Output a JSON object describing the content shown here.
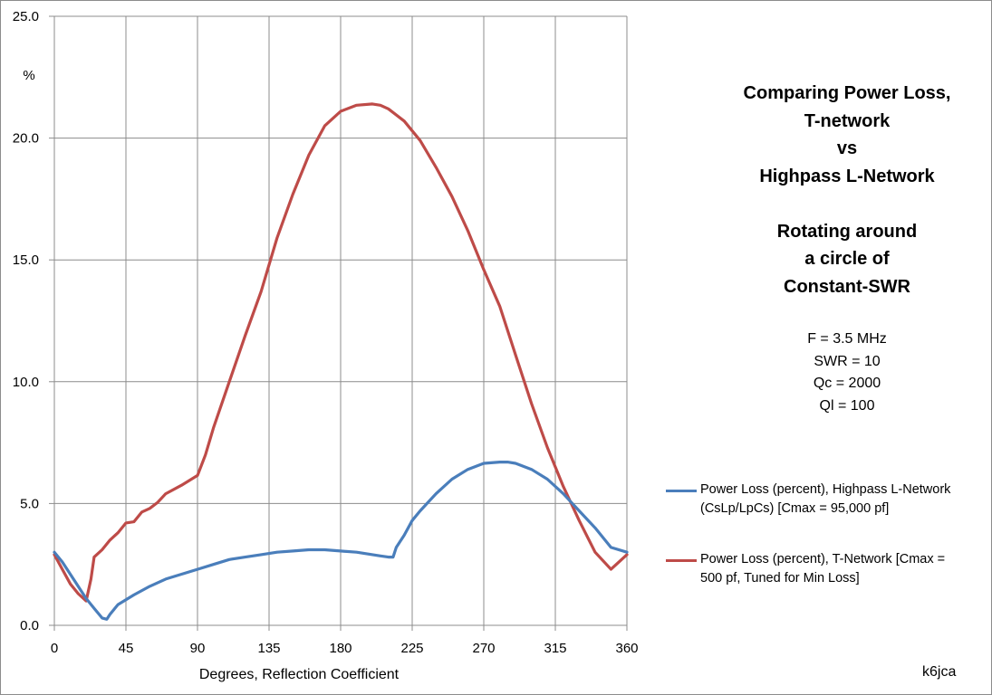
{
  "chart_data": {
    "type": "line",
    "title": [
      "Comparing Power Loss,",
      "T-network",
      "vs",
      "Highpass L-Network",
      "",
      "Rotating around",
      "a circle of",
      "Constant-SWR"
    ],
    "parameters": [
      "F = 3.5 MHz",
      "SWR = 10",
      "Qc = 2000",
      "Ql = 100"
    ],
    "xlabel": "Degrees, Reflection Coefficient",
    "ylabel": "%",
    "xlim": [
      0,
      360
    ],
    "ylim": [
      0,
      25
    ],
    "xticks": [
      0,
      45,
      90,
      135,
      180,
      225,
      270,
      315,
      360
    ],
    "xtick_labels": [
      "0",
      "45",
      "90",
      "135",
      "180",
      "225",
      "270",
      "315",
      "360"
    ],
    "yticks": [
      0,
      5,
      10,
      15,
      20,
      25
    ],
    "ytick_labels": [
      "0.0",
      "5.0",
      "10.0",
      "15.0",
      "20.0",
      "25.0"
    ],
    "grid": true,
    "legend_position": "right",
    "series": [
      {
        "name": "Power Loss (percent), Highpass L-Network (CsLp/LpCs)  [Cmax = 95,000 pf]",
        "color": "#4a7ebb",
        "x": [
          0,
          5,
          10,
          15,
          20,
          25,
          30,
          33,
          35,
          40,
          45,
          50,
          60,
          70,
          80,
          90,
          100,
          110,
          120,
          130,
          140,
          150,
          160,
          170,
          180,
          190,
          200,
          205,
          210,
          213,
          215,
          220,
          225,
          230,
          240,
          250,
          260,
          270,
          280,
          285,
          290,
          300,
          310,
          320,
          330,
          340,
          350,
          360
        ],
        "values": [
          3.0,
          2.6,
          2.1,
          1.6,
          1.1,
          0.7,
          0.3,
          0.25,
          0.45,
          0.85,
          1.05,
          1.25,
          1.6,
          1.9,
          2.1,
          2.3,
          2.5,
          2.7,
          2.8,
          2.9,
          3.0,
          3.05,
          3.1,
          3.1,
          3.05,
          3.0,
          2.9,
          2.85,
          2.8,
          2.8,
          3.2,
          3.7,
          4.3,
          4.7,
          5.4,
          6.0,
          6.4,
          6.65,
          6.7,
          6.7,
          6.65,
          6.4,
          6.0,
          5.4,
          4.7,
          4.0,
          3.2,
          3.0
        ]
      },
      {
        "name": "Power Loss (percent), T-Network [Cmax = 500 pf, Tuned for Min Loss]",
        "color": "#be4b48",
        "x": [
          0,
          5,
          10,
          15,
          20,
          23,
          25,
          30,
          35,
          40,
          45,
          50,
          55,
          60,
          65,
          70,
          80,
          90,
          95,
          100,
          110,
          120,
          130,
          140,
          150,
          160,
          170,
          180,
          190,
          200,
          205,
          210,
          220,
          230,
          240,
          250,
          260,
          270,
          280,
          290,
          300,
          310,
          320,
          330,
          340,
          350,
          360
        ],
        "values": [
          2.9,
          2.3,
          1.7,
          1.3,
          1.0,
          1.9,
          2.8,
          3.1,
          3.5,
          3.8,
          4.2,
          4.25,
          4.65,
          4.8,
          5.05,
          5.4,
          5.75,
          6.15,
          7.0,
          8.1,
          10.0,
          11.9,
          13.7,
          15.9,
          17.7,
          19.3,
          20.5,
          21.1,
          21.35,
          21.4,
          21.35,
          21.2,
          20.7,
          19.9,
          18.8,
          17.6,
          16.2,
          14.6,
          13.1,
          11.1,
          9.1,
          7.3,
          5.7,
          4.3,
          3.0,
          2.3,
          2.9
        ]
      }
    ]
  },
  "legend": [
    {
      "line1": "Power Loss (percent),  Highpass L-Network",
      "line2": "(CsLp/LpCs)  [Cmax = 95,000 pf]",
      "color": "#4a7ebb"
    },
    {
      "line1": "Power Loss (percent), T-Network [Cmax =",
      "line2": "500 pf, Tuned for Min Loss]",
      "color": "#be4b48"
    }
  ],
  "credit": "k6jca"
}
